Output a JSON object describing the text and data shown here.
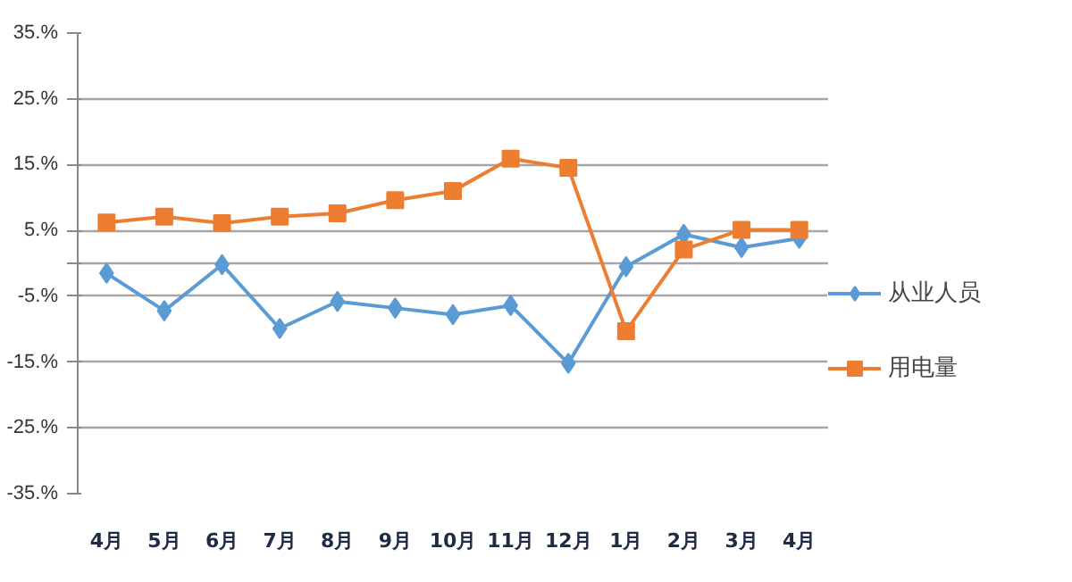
{
  "chart_data": {
    "type": "line",
    "categories": [
      "4月",
      "5月",
      "6月",
      "7月",
      "8月",
      "9月",
      "10月",
      "11月",
      "12月",
      "1月",
      "2月",
      "3月",
      "4月"
    ],
    "series": [
      {
        "name": "从业人员",
        "color": "#5b9bd5",
        "marker": "diamond",
        "values": [
          -1.5,
          -7.2,
          -0.2,
          -9.9,
          -5.8,
          -6.8,
          -7.8,
          -6.4,
          -15.2,
          -0.5,
          4.4,
          2.4,
          3.8
        ]
      },
      {
        "name": "用电量",
        "color": "#ed7d31",
        "marker": "square",
        "values": [
          6.2,
          7.1,
          6.1,
          7.1,
          7.6,
          9.6,
          11.0,
          15.9,
          14.5,
          -10.3,
          2.1,
          5.1,
          5.1
        ]
      }
    ],
    "ylim": [
      -35,
      35
    ],
    "yticks": [
      {
        "value": 35,
        "label": "35.%"
      },
      {
        "value": 25,
        "label": "25.%"
      },
      {
        "value": 15,
        "label": "15.%"
      },
      {
        "value": 5,
        "label": "5.%"
      },
      {
        "value": 0,
        "label": null
      },
      {
        "value": -5,
        "label": "-5.%"
      },
      {
        "value": -15,
        "label": "-15.%"
      },
      {
        "value": -25,
        "label": "-25.%"
      },
      {
        "value": -35,
        "label": "-35.%"
      }
    ],
    "grid": "y",
    "legend": "right",
    "line_style": "solid"
  }
}
